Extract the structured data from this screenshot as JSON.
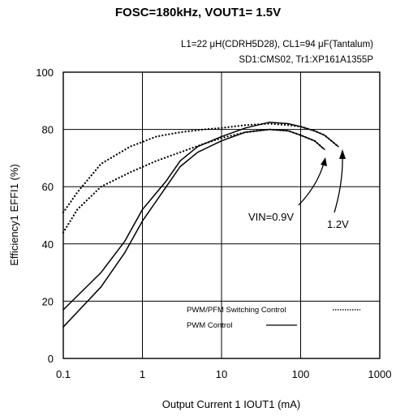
{
  "chart_data": {
    "type": "line",
    "title": "FOSC=180kHz, VOUT1= 1.5V",
    "subtitle_lines": [
      "L1=22 μH(CDRH5D28), CL1=94 μF(Tantalum)",
      "SD1:CMS02, Tr1:XP161A1355P"
    ],
    "xlabel": "Output Current 1 IOUT1 (mA)",
    "ylabel": "Efficiency1 EFFI1 (%)",
    "x_scale": "log",
    "xlim": [
      0.1,
      1000
    ],
    "ylim": [
      0,
      100
    ],
    "x_ticks": [
      {
        "value": 0.1,
        "label": "0.1"
      },
      {
        "value": 1,
        "label": "1"
      },
      {
        "value": 10,
        "label": "10"
      },
      {
        "value": 100,
        "label": "100"
      },
      {
        "value": 1000,
        "label": "1000"
      }
    ],
    "y_ticks": [
      {
        "value": 0,
        "label": "0"
      },
      {
        "value": 20,
        "label": "20"
      },
      {
        "value": 40,
        "label": "40"
      },
      {
        "value": 60,
        "label": "60"
      },
      {
        "value": 80,
        "label": "80"
      },
      {
        "value": 100,
        "label": "100"
      }
    ],
    "grid": true,
    "legend": {
      "position": "bottom-right",
      "entries": [
        {
          "name": "PWM/PFM Switching Control",
          "style": "dotted"
        },
        {
          "name": "PWM  Control",
          "style": "solid"
        }
      ]
    },
    "series": [
      {
        "name": "PWM/PFM Switching Control",
        "style": "dotted",
        "x": [
          0.1,
          0.15,
          0.3,
          0.7,
          1.5,
          3,
          6,
          10,
          20,
          40,
          70,
          100,
          150,
          200
        ],
        "y": [
          44,
          52,
          60,
          65,
          69,
          72,
          75,
          77,
          79,
          80,
          79.5,
          78,
          76,
          73
        ]
      },
      {
        "name": "PWM/PFM Switching Control",
        "style": "dotted",
        "x": [
          0.1,
          0.15,
          0.3,
          0.7,
          1.5,
          3,
          6,
          10,
          20,
          40,
          70,
          100,
          150,
          200,
          300
        ],
        "y": [
          51,
          58,
          68,
          74,
          77.5,
          79,
          80,
          80.5,
          81.5,
          82,
          81.5,
          81,
          79.5,
          78,
          74
        ]
      },
      {
        "name": "PWM  Control",
        "style": "solid",
        "x": [
          0.1,
          0.3,
          0.6,
          1,
          2,
          3,
          5,
          10,
          20,
          40,
          70,
          100,
          150,
          200
        ],
        "y": [
          11,
          25,
          37,
          48,
          60,
          67,
          72,
          76,
          79,
          80,
          79.5,
          78,
          76,
          73
        ]
      },
      {
        "name": "PWM  Control",
        "style": "solid",
        "x": [
          0.1,
          0.3,
          0.6,
          1,
          2,
          3,
          5,
          10,
          20,
          40,
          70,
          100,
          150,
          200,
          300
        ],
        "y": [
          17,
          30,
          41,
          52,
          62,
          69,
          74,
          77.5,
          80.5,
          82.5,
          82,
          81,
          79.5,
          78,
          74
        ]
      }
    ],
    "annotations": [
      {
        "text": "VIN=0.9V",
        "target_x": 200,
        "target_y": 73
      },
      {
        "text": "1.2V",
        "target_x": 300,
        "target_y": 74
      }
    ]
  }
}
